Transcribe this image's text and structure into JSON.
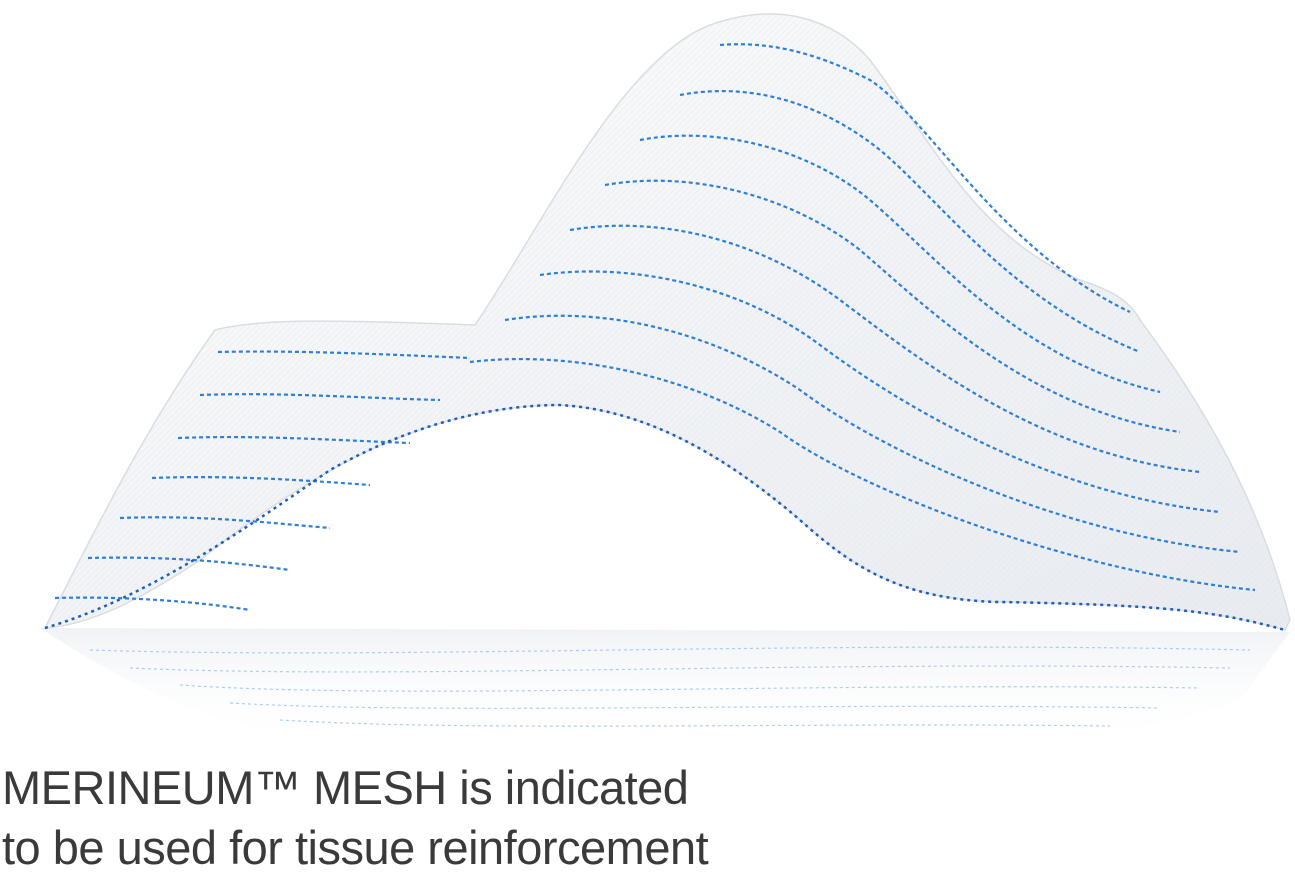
{
  "image": {
    "subject": "surgical-mesh-product-photo",
    "colors": {
      "background": "#ffffff",
      "mesh": "#f2f4f7",
      "stitch": "#2f7fd6",
      "stitch_dark": "#1f5fb8",
      "caption_text": "#3a3a3c"
    }
  },
  "caption": {
    "line1": "MERINEUM™ MESH is indicated",
    "line2": "to be used for tissue reinforcement"
  }
}
